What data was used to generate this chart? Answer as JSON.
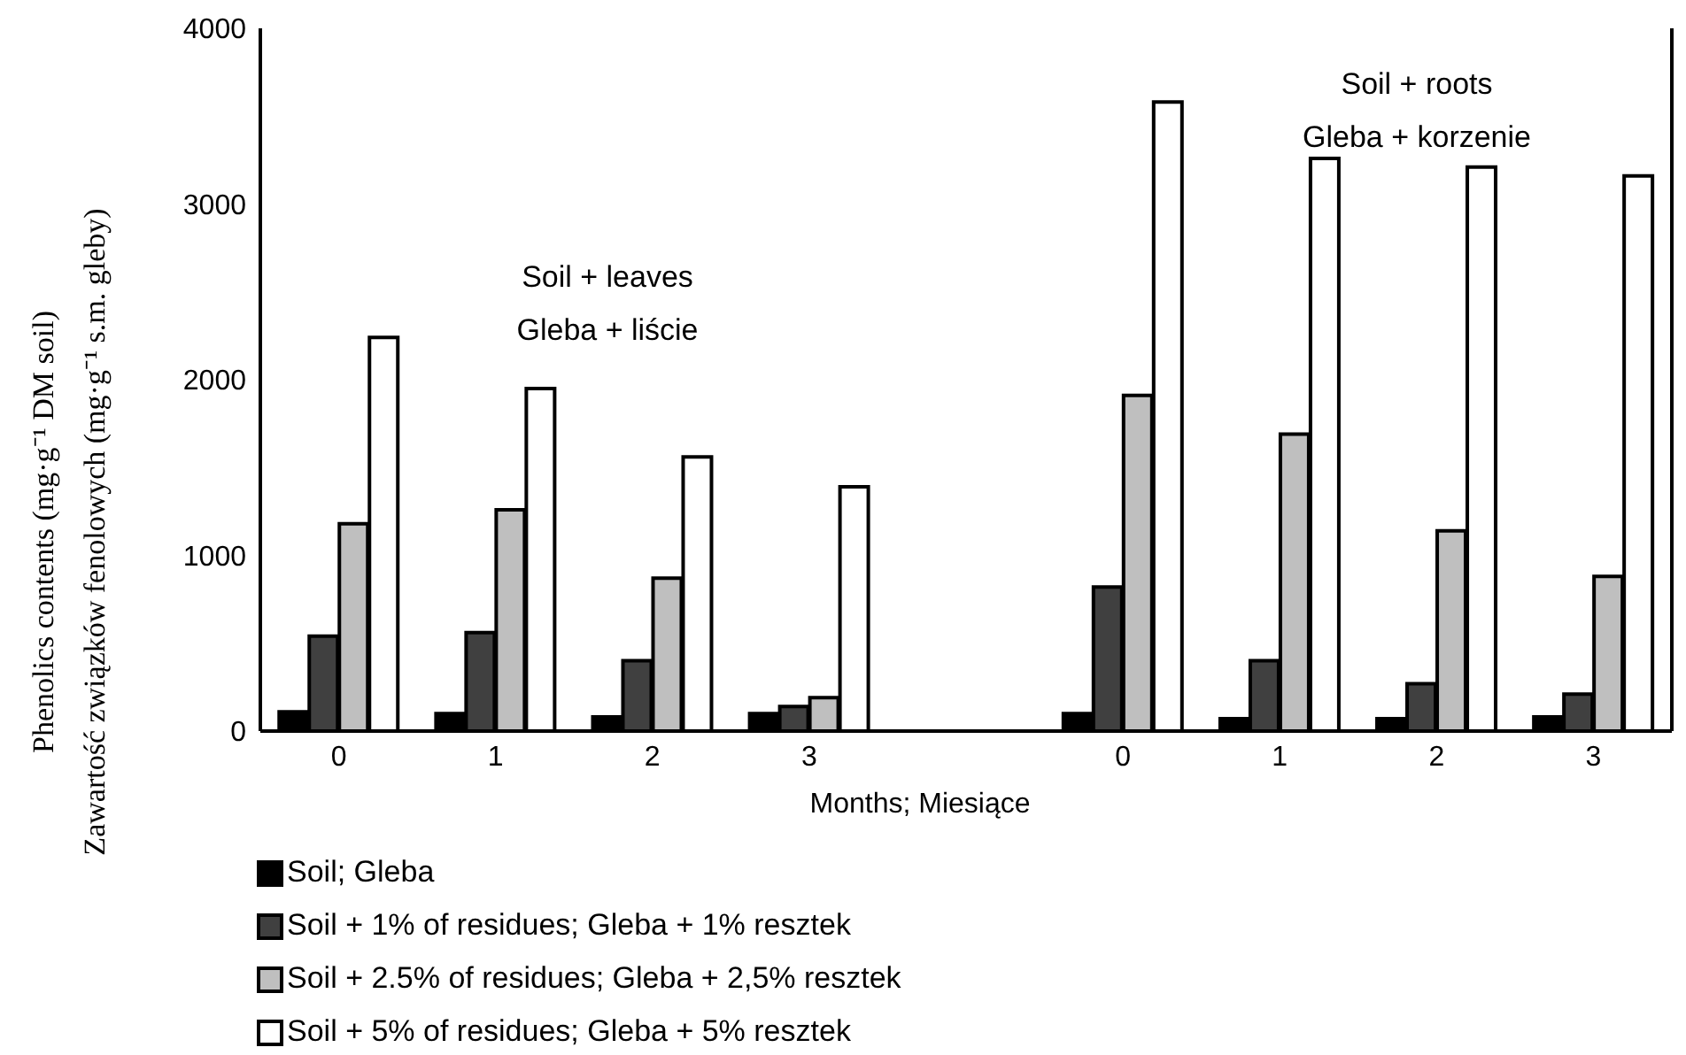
{
  "chart_data": {
    "type": "bar",
    "xlabel": "Months; Miesiące",
    "ylabel": "Phenolics contents (mg·g⁻¹ DM soil)\nZawartość związków fenolowych (mg·g⁻¹ s.m. gleby)",
    "categories": [
      "0",
      "1",
      "2",
      "3",
      null,
      "0",
      "1",
      "2",
      "3"
    ],
    "series": [
      {
        "name": "Soil; Gleba",
        "color": "#000000",
        "values": [
          110,
          100,
          80,
          100,
          null,
          100,
          70,
          70,
          80
        ]
      },
      {
        "name": "Soil + 1% of residues; Gleba + 1% resztek",
        "color": "#404040",
        "values": [
          540,
          560,
          400,
          140,
          null,
          820,
          400,
          270,
          210
        ]
      },
      {
        "name": "Soil + 2.5% of residues; Gleba + 2,5% resztek",
        "color": "#bfbfbf",
        "values": [
          1180,
          1260,
          870,
          190,
          null,
          1910,
          1690,
          1140,
          880
        ]
      },
      {
        "name": "Soil + 5% of residues; Gleba + 5% resztek",
        "color": "#ffffff",
        "values": [
          2240,
          1950,
          1560,
          1390,
          null,
          3580,
          3260,
          3210,
          3160
        ]
      }
    ],
    "ylim": [
      0,
      4000
    ],
    "yticks": [
      0,
      1000,
      2000,
      3000,
      4000
    ],
    "grid": false,
    "legend": "bottom",
    "annotations": [
      "Soil + leaves\nGleba + liście",
      "Soil + roots\nGleba + korzenie"
    ]
  }
}
